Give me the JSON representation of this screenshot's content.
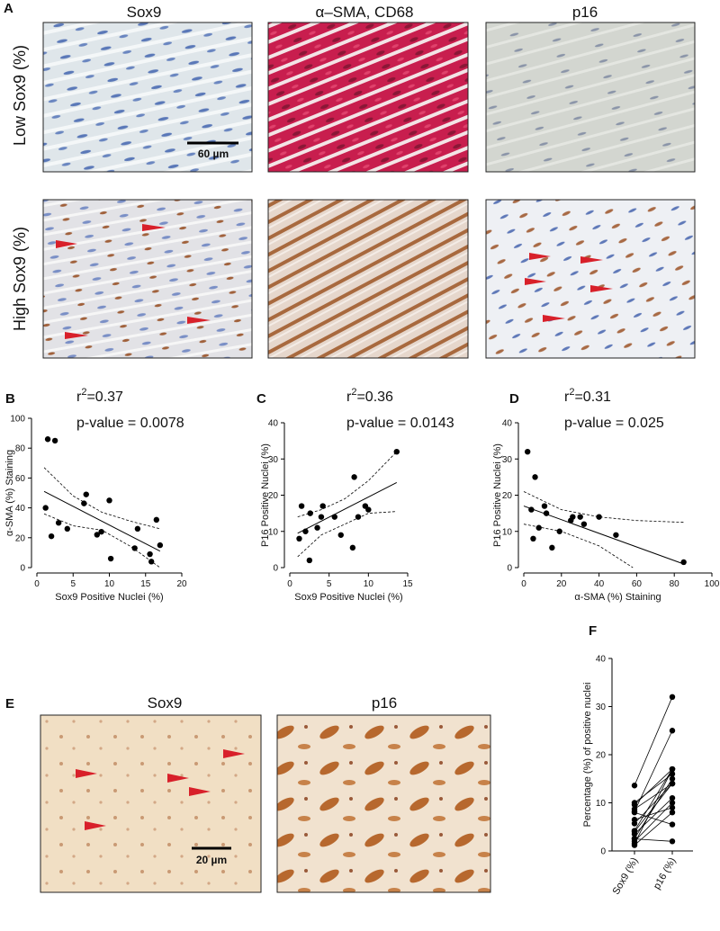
{
  "panel_labels": [
    "A",
    "B",
    "C",
    "D",
    "E",
    "F"
  ],
  "panel_a": {
    "columns": [
      "Sox9",
      "α–SMA, CD68",
      "p16"
    ],
    "rows": [
      "Low Sox9 (%)",
      "High Sox9 (%)"
    ],
    "scale_bar": "60 µm"
  },
  "panel_e": {
    "columns": [
      "Sox9",
      "p16"
    ],
    "scale_bar": "20 µm"
  },
  "chart_data": [
    {
      "type": "scatter",
      "x_label": "Sox9 Positive Nuclei (%)",
      "y_label": "α-SMA (%) Staining",
      "stat_base": "r",
      "stat_sup": "2",
      "stat_text": "=0.37",
      "p_text": "p-value = 0.0078",
      "color": "#000000",
      "x": [
        1.5,
        2.5,
        1.2,
        2,
        3,
        4.2,
        6.5,
        6.8,
        8.3,
        8.9,
        10,
        10.2,
        13.5,
        13.9,
        15.6,
        15.8,
        16.5,
        17
      ],
      "y": [
        86,
        85,
        40,
        21,
        30,
        26,
        43,
        49,
        22,
        24,
        45,
        6,
        13,
        26,
        9,
        4,
        32,
        15
      ],
      "xlim": [
        0,
        20
      ],
      "xticks": [
        0,
        5,
        10,
        15,
        20
      ],
      "ylim": [
        0,
        100
      ],
      "yticks": [
        0,
        20,
        40,
        60,
        80,
        100
      ],
      "fit": {
        "x": [
          1,
          17
        ],
        "y": [
          51,
          11
        ]
      },
      "band_upper": {
        "x": [
          1,
          5,
          9,
          13,
          17
        ],
        "y": [
          67,
          48,
          37,
          31,
          26
        ]
      },
      "band_lower": {
        "x": [
          1,
          5,
          9,
          13,
          17
        ],
        "y": [
          36,
          28,
          25,
          14,
          0
        ]
      }
    },
    {
      "type": "scatter",
      "x_label": "Sox9 Positive Nuclei (%)",
      "y_label": "P16 Positive Nuclei (%)",
      "stat_base": "r",
      "stat_sup": "2",
      "stat_text": "=0.36",
      "p_text": "p-value = 0.0143",
      "color": "#000000",
      "x": [
        1.2,
        1.5,
        2,
        2.5,
        2.6,
        3.5,
        4,
        4.2,
        5.7,
        6.5,
        8,
        8.2,
        8.7,
        9.6,
        10,
        13.6
      ],
      "y": [
        8,
        17,
        10,
        2,
        15,
        11,
        14,
        17,
        14,
        9,
        5.5,
        25,
        14,
        17,
        16,
        32
      ],
      "xlim": [
        0,
        15
      ],
      "xticks": [
        0,
        5,
        10,
        15
      ],
      "ylim": [
        0,
        40
      ],
      "yticks": [
        0,
        10,
        20,
        30,
        40
      ],
      "fit": {
        "x": [
          1,
          13.6
        ],
        "y": [
          9.5,
          23.5
        ]
      },
      "band_upper": {
        "x": [
          1,
          4,
          7,
          10,
          13.6
        ],
        "y": [
          14,
          16,
          19,
          24,
          32
        ]
      },
      "band_lower": {
        "x": [
          1,
          4,
          7,
          10,
          13.6
        ],
        "y": [
          3,
          9,
          12,
          15,
          15.5
        ]
      }
    },
    {
      "type": "scatter",
      "x_label": "α-SMA (%) Staining",
      "y_label": "P16 Positive Nuclei (%)",
      "stat_base": "r",
      "stat_sup": "2",
      "stat_text": "=0.31",
      "p_text": "p-value = 0.025",
      "color": "#000000",
      "x": [
        2,
        4,
        5,
        6,
        8,
        11,
        12,
        15,
        19,
        25,
        26,
        30,
        32,
        40,
        49,
        85
      ],
      "y": [
        32,
        16,
        8,
        25,
        11,
        17,
        15,
        5.5,
        10,
        13,
        14,
        14,
        12,
        14,
        9,
        1.5
      ],
      "xlim": [
        0,
        100
      ],
      "xticks": [
        0,
        20,
        40,
        60,
        80,
        100
      ],
      "ylim": [
        0,
        40
      ],
      "yticks": [
        0,
        10,
        20,
        30,
        40
      ],
      "fit": {
        "x": [
          0,
          85
        ],
        "y": [
          17,
          1
        ]
      },
      "band_upper": {
        "x": [
          0,
          20,
          40,
          60,
          85
        ],
        "y": [
          21,
          16,
          14,
          13,
          12.5
        ]
      },
      "band_lower": {
        "x": [
          0,
          20,
          40,
          58
        ],
        "y": [
          12,
          10,
          6,
          0
        ]
      }
    },
    {
      "type": "paired",
      "y_label": "Percentage (%) of positive nuclei",
      "color": "#000000",
      "categories": [
        "Sox9 (%)",
        "p16 (%)"
      ],
      "values": [
        [
          1.2,
          1.5,
          2,
          2.5,
          2.6,
          3.5,
          4,
          4.2,
          5.7,
          6.5,
          8,
          8.2,
          8.7,
          9.6,
          10,
          13.6
        ],
        [
          8,
          17,
          10,
          2,
          15,
          11,
          14,
          17,
          14,
          9,
          5.5,
          25,
          14,
          17,
          16,
          32
        ]
      ],
      "ylim": [
        0,
        40
      ],
      "yticks": [
        0,
        10,
        20,
        30,
        40
      ]
    }
  ]
}
